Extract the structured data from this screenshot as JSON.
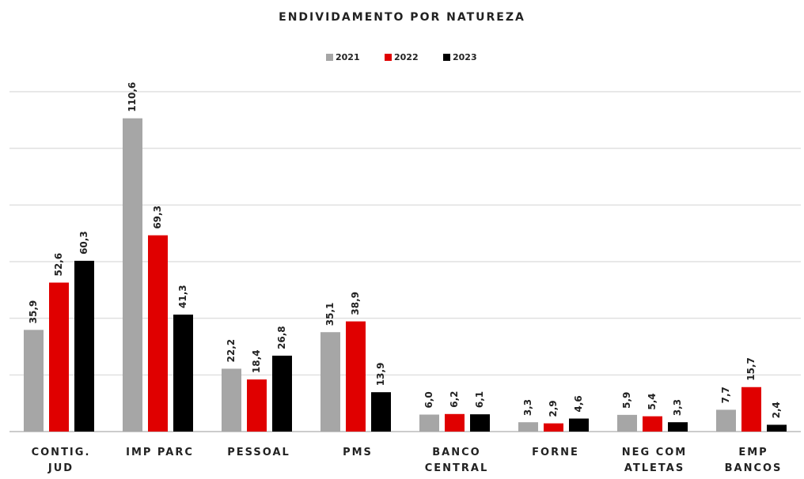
{
  "chart_data": {
    "type": "bar",
    "title": "ENDIVIDAMENTO POR NATUREZA",
    "categories": [
      "CONTIG.\nJUD",
      "IMP PARC",
      "PESSOAL",
      "PMS",
      "BANCO\nCENTRAL",
      "FORNE",
      "NEG COM\nATLETAS",
      "EMP\nBANCOS"
    ],
    "series": [
      {
        "name": "2021",
        "color": "#a6a6a6",
        "values": [
          35.9,
          110.6,
          22.2,
          35.1,
          6.0,
          3.3,
          5.9,
          7.7
        ],
        "value_labels": [
          "35,9",
          "110,6",
          "22,2",
          "35,1",
          "6,0",
          "3,3",
          "5,9",
          "7,7"
        ]
      },
      {
        "name": "2022",
        "color": "#e00000",
        "values": [
          52.6,
          69.3,
          18.4,
          38.9,
          6.2,
          2.9,
          5.4,
          15.7
        ],
        "value_labels": [
          "52,6",
          "69,3",
          "18,4",
          "38,9",
          "6,2",
          "2,9",
          "5,4",
          "15,7"
        ]
      },
      {
        "name": "2023",
        "color": "#000000",
        "values": [
          60.3,
          41.3,
          26.8,
          13.9,
          6.1,
          4.6,
          3.3,
          2.4
        ],
        "value_labels": [
          "60,3",
          "41,3",
          "26,8",
          "13,9",
          "6,1",
          "4,6",
          "3,3",
          "2,4"
        ]
      }
    ],
    "ylim": [
      0,
      120
    ],
    "yticks": [
      0,
      20,
      40,
      60,
      80,
      100,
      120
    ],
    "grid": true,
    "legend": "top"
  }
}
